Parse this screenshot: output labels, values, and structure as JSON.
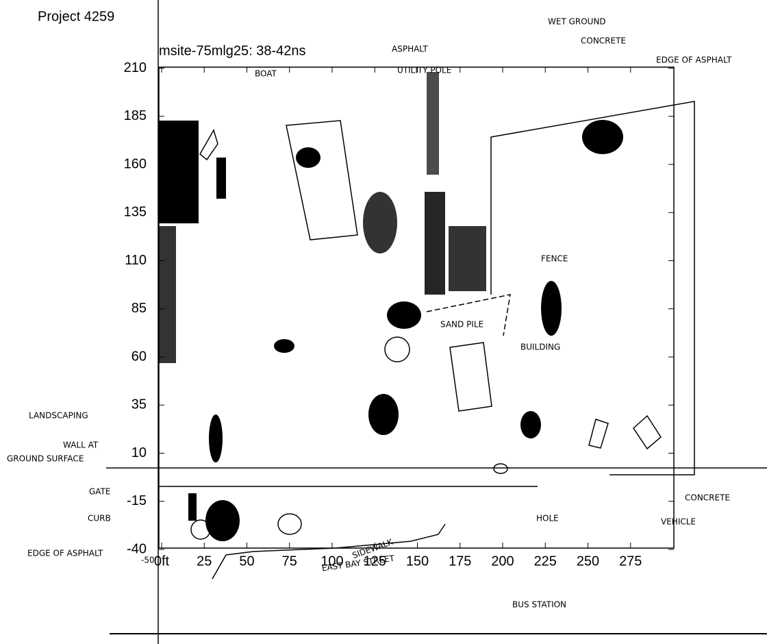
{
  "title": "Project 4259",
  "plot_title": "msite-75mlg25: 38-42ns",
  "xlim": [
    0,
    290
  ],
  "ylim": [
    -40,
    210
  ],
  "xticks": [
    {
      "value": 0,
      "label": "0ft"
    },
    25,
    50,
    75,
    100,
    125,
    150,
    175,
    200,
    225,
    250,
    275
  ],
  "yticks": [
    210,
    185,
    160,
    135,
    110,
    85,
    60,
    35,
    10,
    -15,
    -40
  ],
  "annotations": [
    "WET GROUND",
    "CONCRETE",
    "ASPHALT",
    "EDGE OF ASPHALT",
    "BOAT",
    "UTILITY POLE",
    "FENCE",
    "SAND PILE",
    "BUILDING",
    "LANDSCAPING",
    "WALL AT",
    "GROUND SURFACE",
    "GATE",
    "CURB",
    "HOLE",
    "CONCRETE",
    "VEHICLE",
    "EDGE OF ASPHALT",
    "-50'",
    "SIDEWALK",
    "EAST BAY STREET",
    "BUS STATION"
  ]
}
